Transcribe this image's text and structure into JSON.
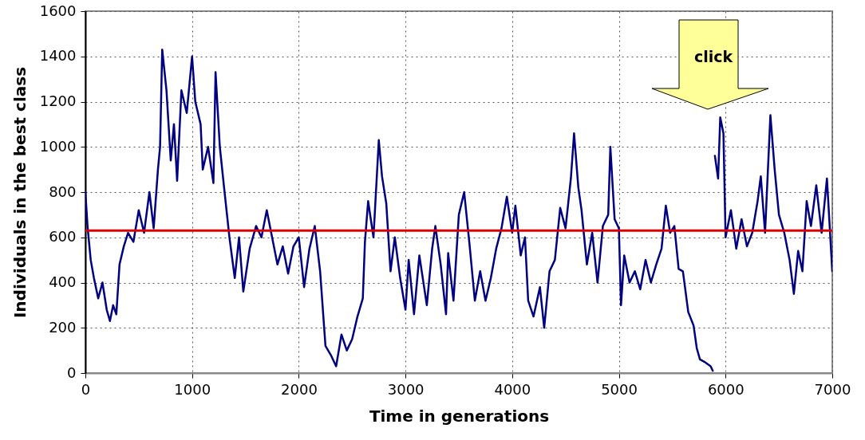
{
  "chart_data": {
    "type": "line",
    "xlabel": "Time in generations",
    "ylabel": "Individuals in the best class",
    "annotations": [
      "click"
    ],
    "xlim": [
      0,
      7000
    ],
    "xticks": [
      0,
      1000,
      2000,
      3000,
      4000,
      5000,
      6000,
      7000
    ],
    "ylim": [
      0,
      1600
    ],
    "yticks": [
      0,
      200,
      400,
      600,
      800,
      1000,
      1200,
      1400,
      1600
    ],
    "grid": true,
    "ref_lines": [
      {
        "axis": "y",
        "value": 630,
        "color": "#dd0000"
      }
    ],
    "series": [
      {
        "color": "#000080",
        "x": [
          0,
          20,
          50,
          80,
          120,
          160,
          200,
          230,
          260,
          290,
          320,
          360,
          400,
          450,
          500,
          550,
          600,
          640,
          680,
          700,
          720,
          760,
          800,
          830,
          860,
          900,
          950,
          1000,
          1030,
          1080,
          1100,
          1150,
          1200,
          1220,
          1260,
          1300,
          1350,
          1400,
          1440,
          1480,
          1540,
          1600,
          1650,
          1700,
          1750,
          1800,
          1850,
          1900,
          1950,
          2000,
          2050,
          2100,
          2150,
          2200,
          2250,
          2300,
          2350,
          2400,
          2450,
          2500,
          2550,
          2600,
          2620,
          2650,
          2700,
          2750,
          2780,
          2820,
          2860,
          2900,
          2950,
          3000,
          3030,
          3080,
          3130,
          3200,
          3250,
          3280,
          3330,
          3380,
          3400,
          3450,
          3500,
          3550,
          3600,
          3650,
          3700,
          3750,
          3800,
          3850,
          3900,
          3950,
          4000,
          4030,
          4080,
          4120,
          4150,
          4200,
          4260,
          4300,
          4350,
          4400,
          4450,
          4500,
          4550,
          4580,
          4620,
          4650,
          4700,
          4750,
          4800,
          4850,
          4900,
          4920,
          4960,
          5000,
          5020,
          5050,
          5100,
          5150,
          5200,
          5250,
          5300,
          5350,
          5400,
          5440,
          5480,
          5520,
          5560,
          5600,
          5650,
          5700,
          5730,
          5760,
          5800,
          5860,
          5880,
          5890,
          5900,
          5930,
          5950,
          5980,
          6000,
          6050,
          6100,
          6150,
          6200,
          6250,
          6300,
          6330,
          6370,
          6420,
          6460,
          6500,
          6550,
          6600,
          6640,
          6680,
          6720,
          6760,
          6800,
          6850,
          6900,
          6950,
          7000
        ],
        "values": [
          800,
          650,
          500,
          420,
          330,
          400,
          280,
          230,
          300,
          260,
          480,
          560,
          620,
          580,
          720,
          620,
          800,
          640,
          900,
          1000,
          1430,
          1250,
          940,
          1100,
          850,
          1250,
          1150,
          1400,
          1200,
          1100,
          900,
          1000,
          840,
          1330,
          1000,
          820,
          600,
          420,
          600,
          360,
          550,
          650,
          600,
          720,
          600,
          480,
          560,
          440,
          560,
          600,
          380,
          550,
          650,
          450,
          120,
          80,
          30,
          170,
          100,
          150,
          250,
          330,
          580,
          760,
          600,
          1030,
          870,
          750,
          450,
          600,
          420,
          280,
          500,
          260,
          520,
          300,
          550,
          650,
          480,
          260,
          530,
          320,
          700,
          800,
          570,
          320,
          450,
          320,
          420,
          550,
          640,
          780,
          620,
          740,
          520,
          600,
          320,
          250,
          380,
          200,
          450,
          500,
          730,
          640,
          860,
          1060,
          820,
          720,
          480,
          620,
          400,
          650,
          700,
          1000,
          680,
          640,
          300,
          520,
          400,
          450,
          370,
          500,
          400,
          480,
          550,
          740,
          620,
          650,
          460,
          450,
          270,
          210,
          110,
          60,
          50,
          30,
          10,
          null,
          960,
          860,
          1130,
          1060,
          600,
          720,
          550,
          680,
          560,
          620,
          760,
          870,
          620,
          1140,
          900,
          700,
          620,
          500,
          350,
          540,
          450,
          760,
          650,
          830,
          620,
          860,
          450
        ]
      }
    ]
  }
}
